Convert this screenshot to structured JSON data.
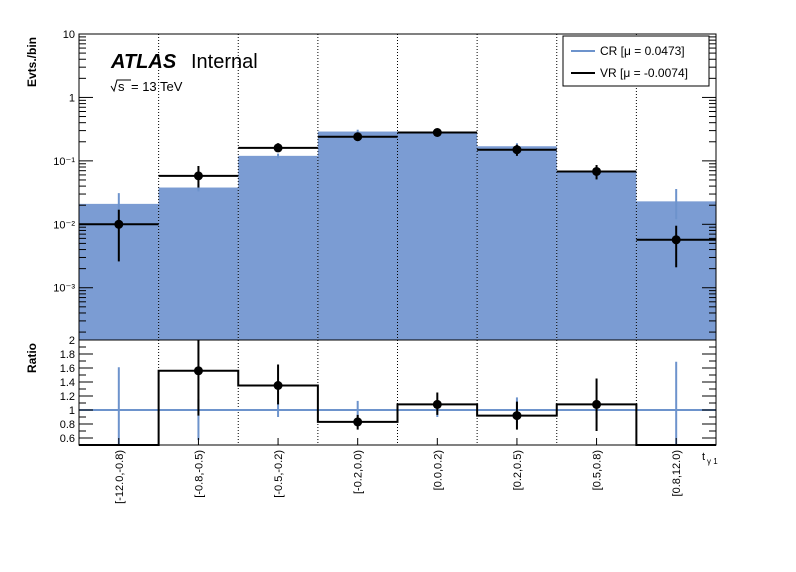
{
  "colors": {
    "cr_fill": "#7b9cd3",
    "cr_line": "#6d93cc",
    "vr": "#000000",
    "frame": "#000000"
  },
  "labels": {
    "atlas": "ATLAS",
    "internal": "Internal",
    "energy": "= 13 TeV",
    "sqrt_s": "s",
    "top_ylabel": "Evts./bin",
    "bottom_ylabel": "Ratio",
    "xlabel": "t",
    "xlabel_sub": "γ 1"
  },
  "legend": {
    "cr": "CR [μ = 0.0473]",
    "vr": "VR [μ = -0.0074]"
  },
  "chart_data": [
    {
      "type": "bar",
      "panel": "main",
      "ylabel": "Evts./bin",
      "yscale": "log",
      "ylim": [
        0.00015,
        10
      ],
      "yticks": [
        {
          "v": 0.001,
          "label": "10⁻³"
        },
        {
          "v": 0.01,
          "label": "10⁻²"
        },
        {
          "v": 0.1,
          "label": "10⁻¹"
        },
        {
          "v": 1,
          "label": "1"
        },
        {
          "v": 10,
          "label": "10"
        }
      ],
      "categories": [
        "[-12.0,-0.8)",
        "[-0.8,-0.5)",
        "[-0.5,-0.2)",
        "[-0.2,0.0)",
        "[0.0,0.2)",
        "[0.2,0.5)",
        "[0.5,0.8)",
        "[0.8,12.0)"
      ],
      "series": [
        {
          "name": "CR [μ = 0.0473]",
          "style": "filled-histogram",
          "values": [
            0.021,
            0.038,
            0.12,
            0.29,
            0.27,
            0.17,
            0.07,
            0.023
          ],
          "err_up": [
            0.031,
            0.043,
            0.13,
            0.31,
            0.29,
            0.19,
            0.078,
            0.036
          ],
          "err_down": [
            0.012,
            0.033,
            0.11,
            0.27,
            0.25,
            0.15,
            0.062,
            0.012
          ]
        },
        {
          "name": "VR [μ = -0.0074]",
          "style": "markers",
          "values": [
            0.01,
            0.058,
            0.16,
            0.24,
            0.28,
            0.15,
            0.068,
            0.0057
          ],
          "err_up": [
            0.017,
            0.083,
            0.19,
            0.27,
            0.31,
            0.18,
            0.086,
            0.0095
          ],
          "err_down": [
            0.0026,
            0.038,
            0.14,
            0.21,
            0.25,
            0.12,
            0.051,
            0.0021
          ]
        }
      ]
    },
    {
      "type": "bar",
      "panel": "ratio",
      "ylabel": "Ratio",
      "ylim": [
        0.5,
        2.0
      ],
      "yticks": [
        0.6,
        0.8,
        1,
        1.2,
        1.4,
        1.6,
        1.8,
        2
      ],
      "reference": 1,
      "categories": [
        "[-12.0,-0.8)",
        "[-0.8,-0.5)",
        "[-0.5,-0.2)",
        "[-0.2,0.0)",
        "[0.0,0.2)",
        "[0.2,0.5)",
        "[0.5,0.8)",
        "[0.8,12.0)"
      ],
      "series": [
        {
          "name": "CR",
          "style": "error-band",
          "err_up": [
            1.61,
            1.15,
            1.1,
            1.13,
            1.1,
            1.18,
            1.12,
            1.69
          ],
          "err_down": [
            0.5,
            0.57,
            0.9,
            0.9,
            0.9,
            0.82,
            0.88,
            0.5
          ]
        },
        {
          "name": "VR",
          "style": "step-markers",
          "values": [
            0.48,
            1.56,
            1.35,
            0.83,
            1.08,
            0.92,
            1.08,
            0.48
          ],
          "err_up": [
            null,
            2.05,
            1.65,
            0.93,
            1.25,
            1.12,
            1.45,
            null
          ],
          "err_down": [
            null,
            0.92,
            1.08,
            0.72,
            0.93,
            0.72,
            0.7,
            null
          ]
        }
      ]
    }
  ]
}
